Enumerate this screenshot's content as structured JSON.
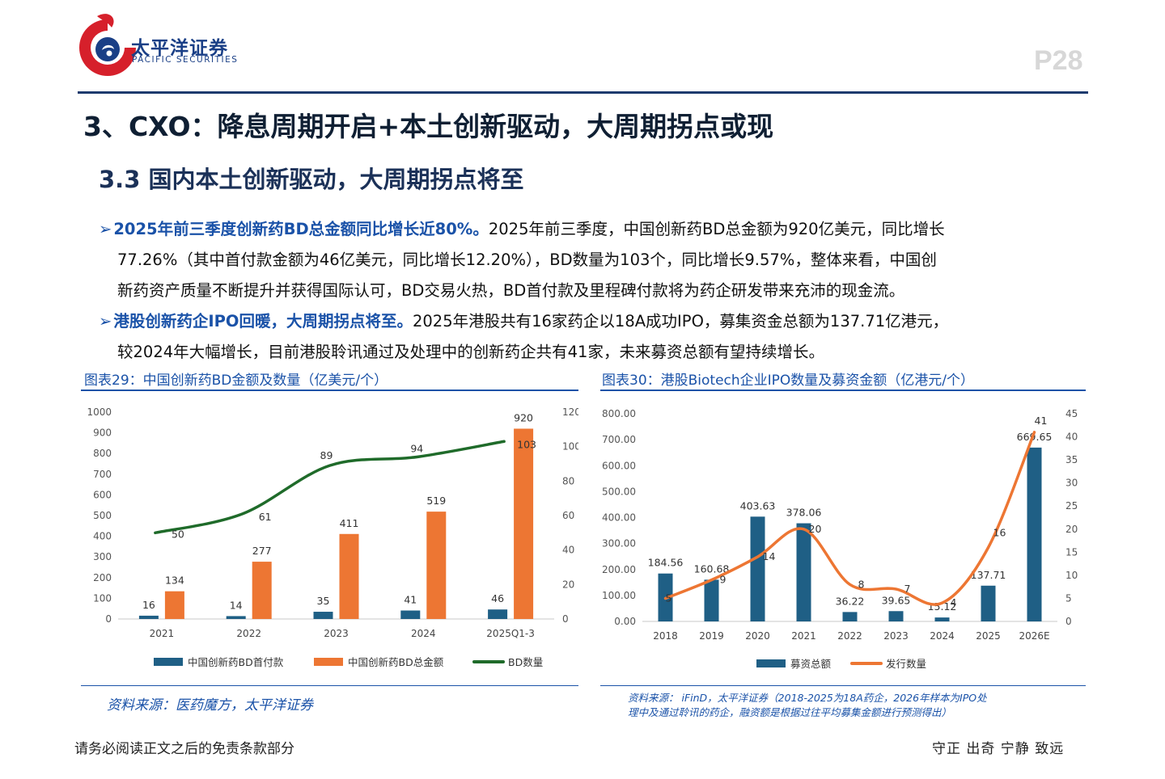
{
  "header": {
    "brand_cn": "太平洋证券",
    "brand_en": "PACIFIC SECURITIES",
    "page_number": "P28",
    "logo_icon": "pacific-securities-logo-icon"
  },
  "main_title": "3、CXO：降息周期开启+本土创新驱动，大周期拐点或现",
  "sub_title": "3.3 国内本土创新驱动，大周期拐点将至",
  "bullets": [
    {
      "highlight": "2025年前三季度创新药BD总金额同比增长近80%。",
      "lines": [
        "2025年前三季度，中国创新药BD总金额为920亿美元，同比增长",
        "77.26%（其中首付款金额为46亿美元，同比增长12.20%），BD数量为103个，同比增长9.57%，整体来看，中国创",
        "新药资产质量不断提升并获得国际认可，BD交易火热，BD首付款及里程碑付款将为药企研发带来充沛的现金流。"
      ]
    },
    {
      "highlight": "港股创新药企IPO回暖，大周期拐点将至。",
      "lines": [
        "2025年港股共有16家药企以18A成功IPO，募集资金总额为137.71亿港元，",
        "较2024年大幅增长，目前港股聆讯通过及处理中的创新药企共有41家，未来募资总额有望持续增长。"
      ]
    }
  ],
  "figures": [
    {
      "title": "图表29：中国创新药BD金额及数量（亿美元/个）",
      "source": "资料来源：医药魔方，太平洋证券"
    },
    {
      "title": "图表30：港股Biotech企业IPO数量及募资金额（亿港元/个）",
      "source_lines": [
        "资料来源： iFinD，太平洋证券（2018-2025为18A药企，2026年样本为IPO处",
        "理中及通过聆讯的药企，融资额是根据过往平均募集金额进行预测得出）"
      ]
    }
  ],
  "chart_data": [
    {
      "type": "bar",
      "categories": [
        "2021",
        "2022",
        "2023",
        "2024",
        "2025Q1-3"
      ],
      "series": [
        {
          "name": "中国创新药BD首付款",
          "type": "bar",
          "axis": "left",
          "color": "#1f5f85",
          "values": [
            16,
            14,
            35,
            41,
            46
          ]
        },
        {
          "name": "中国创新药BD总金额",
          "type": "bar",
          "axis": "left",
          "color": "#ed7633",
          "values": [
            134,
            277,
            411,
            519,
            920
          ]
        },
        {
          "name": "BD数量",
          "type": "line",
          "axis": "right",
          "color": "#1f6b2a",
          "values": [
            50,
            61,
            89,
            94,
            103
          ]
        }
      ],
      "ylim": [
        0,
        1000
      ],
      "yticks": [
        "0",
        "100",
        "200",
        "300",
        "400",
        "500",
        "600",
        "700",
        "800",
        "900",
        "1000"
      ],
      "y2lim": [
        0,
        120
      ],
      "y2ticks": [
        "0",
        "20",
        "40",
        "60",
        "80",
        "100",
        "120"
      ],
      "legend": "bottom",
      "grid": false
    },
    {
      "type": "bar",
      "categories": [
        "2018",
        "2019",
        "2020",
        "2021",
        "2022",
        "2023",
        "2024",
        "2025",
        "2026E"
      ],
      "series": [
        {
          "name": "募资总额",
          "type": "bar",
          "axis": "left",
          "color": "#1f5f85",
          "values": [
            184.56,
            160.68,
            403.63,
            378.06,
            36.22,
            39.65,
            15.12,
            137.71,
            669.65
          ],
          "labels": [
            "184.56",
            "160.68",
            "403.63",
            "378.06",
            "36.22",
            "39.65",
            "15.12",
            "137.71",
            "669.65"
          ]
        },
        {
          "name": "发行数量",
          "type": "line",
          "axis": "right",
          "color": "#ed7633",
          "smooth": true,
          "values": [
            5,
            9,
            14,
            20,
            8,
            7,
            4,
            16,
            41
          ]
        }
      ],
      "ylim": [
        0,
        800
      ],
      "yticks": [
        "0.00",
        "100.00",
        "200.00",
        "300.00",
        "400.00",
        "500.00",
        "600.00",
        "700.00",
        "800.00"
      ],
      "y2lim": [
        0,
        45
      ],
      "y2ticks": [
        "0",
        "5",
        "10",
        "15",
        "20",
        "25",
        "30",
        "35",
        "40",
        "45"
      ],
      "legend": "bottom",
      "grid": false
    }
  ],
  "footer": {
    "left": "请务必阅读正文之后的免责条款部分",
    "right": "守正 出奇 宁静 致远"
  }
}
